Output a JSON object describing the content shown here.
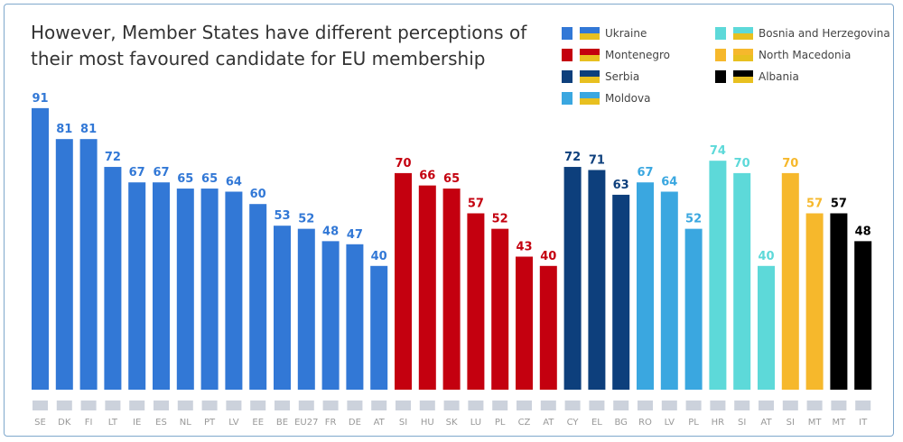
{
  "chart_data": {
    "type": "bar",
    "title": "However, Member States have different perceptions of their most favoured candidate for EU membership",
    "ylim": [
      0,
      100
    ],
    "grid": false,
    "legend_position": "top-right",
    "series": [
      {
        "name": "Ukraine",
        "color": "#3278d6",
        "categories": [
          "SE",
          "DK",
          "FI",
          "LT",
          "IE",
          "ES",
          "NL",
          "PT",
          "LV",
          "EE",
          "BE",
          "EU27",
          "FR",
          "DE",
          "AT"
        ],
        "values": [
          91,
          81,
          81,
          72,
          67,
          67,
          65,
          65,
          64,
          60,
          53,
          52,
          48,
          47,
          40
        ]
      },
      {
        "name": "Montenegro",
        "color": "#c4000f",
        "categories": [
          "SI",
          "HU",
          "SK",
          "LU",
          "PL",
          "CZ",
          "AT"
        ],
        "values": [
          70,
          66,
          65,
          57,
          52,
          43,
          40
        ]
      },
      {
        "name": "Serbia",
        "color": "#0d3f7c",
        "categories": [
          "CY",
          "EL",
          "BG"
        ],
        "values": [
          72,
          71,
          63
        ]
      },
      {
        "name": "Moldova",
        "color": "#3aa7e0",
        "categories": [
          "RO",
          "LV",
          "PL"
        ],
        "values": [
          67,
          64,
          52
        ]
      },
      {
        "name": "Bosnia and Herzegovina",
        "color": "#5dd9d9",
        "categories": [
          "HR",
          "SI",
          "AT"
        ],
        "values": [
          74,
          70,
          40
        ]
      },
      {
        "name": "North Macedonia",
        "color": "#f6b82c",
        "categories": [
          "SI",
          "MT"
        ],
        "values": [
          70,
          57
        ]
      },
      {
        "name": "Albania",
        "color": "#000000",
        "categories": [
          "MT",
          "IT"
        ],
        "values": [
          57,
          48
        ]
      }
    ]
  }
}
